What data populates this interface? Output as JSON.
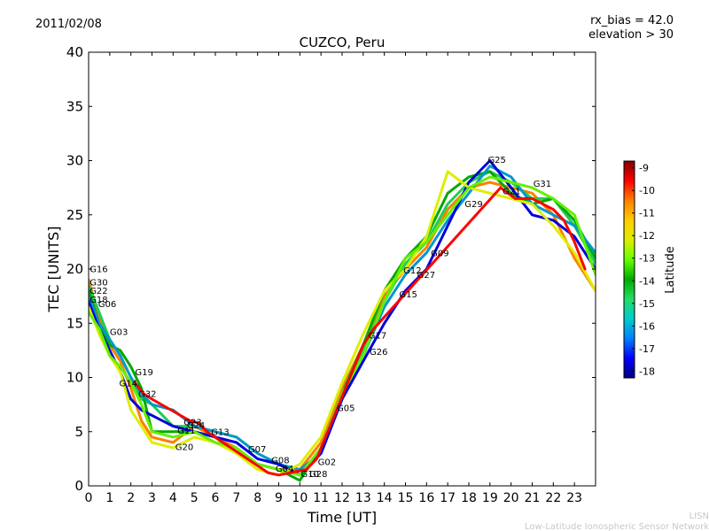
{
  "header": {
    "date": "2011/02/08",
    "rx_bias": "rx_bias = 42.0",
    "elevation": "elevation > 30"
  },
  "footer": {
    "line1": "LISN",
    "line2": "Low-Latitude Ionospheric Sensor Network"
  },
  "colorbar": {
    "label": "Latitude",
    "range": [
      -18.3,
      -8.7
    ],
    "ticks": [
      "-9",
      "-10",
      "-11",
      "-12",
      "-13",
      "-14",
      "-15",
      "-16",
      "-17",
      "-18"
    ],
    "tick_values": [
      -9,
      -10,
      -11,
      -12,
      -13,
      -14,
      -15,
      -16,
      -17,
      -18
    ],
    "stops": [
      "#00007f",
      "#0000ff",
      "#007fff",
      "#00cccc",
      "#22dd66",
      "#00aa00",
      "#66ff00",
      "#ddee00",
      "#ffcc00",
      "#ff7f00",
      "#ff0000",
      "#7f0000"
    ]
  },
  "chart_data": {
    "type": "scatter",
    "title": "CUZCO, Peru",
    "xlabel": "Time [UT]",
    "ylabel": "TEC [UNITS]",
    "xlim": [
      0,
      24
    ],
    "ylim": [
      0,
      40
    ],
    "xticks": [
      "0",
      "1",
      "2",
      "3",
      "4",
      "5",
      "6",
      "7",
      "8",
      "9",
      "10",
      "11",
      "12",
      "13",
      "14",
      "15",
      "16",
      "17",
      "18",
      "19",
      "20",
      "21",
      "22",
      "23"
    ],
    "yticks": [
      "0",
      "5",
      "10",
      "15",
      "20",
      "25",
      "30",
      "35",
      "40"
    ],
    "series": [
      {
        "color": "#ff7f00",
        "points": [
          [
            0,
            19
          ],
          [
            0.5,
            15.5
          ],
          [
            1,
            13
          ],
          [
            1.5,
            11.5
          ],
          [
            2,
            9
          ],
          [
            2.5,
            6
          ],
          [
            3,
            4.5
          ],
          [
            4,
            4
          ],
          [
            5,
            5.5
          ],
          [
            6,
            4.5
          ],
          [
            7,
            3.5
          ],
          [
            8,
            2
          ],
          [
            9,
            1.5
          ],
          [
            10,
            1.5
          ],
          [
            11,
            4
          ],
          [
            12,
            9
          ],
          [
            13,
            13
          ],
          [
            14,
            17.5
          ],
          [
            15,
            20
          ],
          [
            16,
            22
          ],
          [
            17,
            25.5
          ],
          [
            18,
            27.5
          ],
          [
            19,
            28
          ],
          [
            20,
            27.5
          ],
          [
            21,
            27
          ],
          [
            22,
            25
          ],
          [
            23,
            21
          ],
          [
            24,
            18
          ]
        ]
      },
      {
        "color": "#22cc55",
        "points": [
          [
            0,
            18.5
          ],
          [
            0.5,
            16
          ],
          [
            1,
            13.5
          ],
          [
            1.5,
            12
          ],
          [
            2,
            10
          ],
          [
            2.5,
            8
          ],
          [
            3,
            7.5
          ],
          [
            4,
            5.5
          ],
          [
            5,
            5.5
          ],
          [
            6,
            5
          ],
          [
            7,
            4.5
          ],
          [
            8,
            3
          ],
          [
            9,
            2
          ],
          [
            10,
            1
          ],
          [
            11,
            3
          ],
          [
            12,
            8
          ],
          [
            13,
            12.5
          ],
          [
            14,
            17
          ],
          [
            15,
            20.5
          ],
          [
            16,
            22.5
          ],
          [
            17,
            26
          ],
          [
            18,
            28
          ],
          [
            19,
            29
          ],
          [
            20,
            28
          ],
          [
            21,
            26.5
          ],
          [
            22,
            26.5
          ],
          [
            23,
            24
          ],
          [
            24,
            20.5
          ]
        ]
      },
      {
        "color": "#00aa00",
        "points": [
          [
            0,
            18
          ],
          [
            0.5,
            15
          ],
          [
            1,
            13
          ],
          [
            1.5,
            12.5
          ],
          [
            2,
            11
          ],
          [
            2.5,
            9
          ],
          [
            3,
            5
          ],
          [
            4,
            5
          ],
          [
            5,
            5
          ],
          [
            6,
            4.5
          ],
          [
            7,
            3
          ],
          [
            8,
            2
          ],
          [
            9,
            1.5
          ],
          [
            10,
            0.5
          ],
          [
            11,
            3.5
          ],
          [
            12,
            8.5
          ],
          [
            13,
            13
          ],
          [
            14,
            18
          ],
          [
            15,
            21
          ],
          [
            16,
            23
          ],
          [
            17,
            27
          ],
          [
            18,
            28.5
          ],
          [
            19,
            29
          ],
          [
            20,
            27
          ],
          [
            21,
            26
          ],
          [
            22,
            26.5
          ],
          [
            23,
            24.5
          ],
          [
            24,
            21
          ]
        ]
      },
      {
        "color": "#0099cc",
        "points": [
          [
            0,
            17.5
          ],
          [
            0.5,
            15
          ],
          [
            1,
            13.5
          ],
          [
            1.5,
            12
          ],
          [
            2,
            10
          ],
          [
            2.5,
            8.5
          ],
          [
            3,
            7.5
          ],
          [
            4,
            7
          ],
          [
            5,
            5.5
          ],
          [
            6,
            5
          ],
          [
            7,
            4.5
          ],
          [
            8,
            3
          ],
          [
            9,
            2
          ],
          [
            10,
            1.5
          ],
          [
            11,
            3
          ],
          [
            12,
            8
          ],
          [
            13,
            12
          ],
          [
            14,
            16.5
          ],
          [
            15,
            19.5
          ],
          [
            16,
            21.5
          ],
          [
            17,
            24.5
          ],
          [
            18,
            27
          ],
          [
            19,
            29.5
          ],
          [
            20,
            28.5
          ],
          [
            21,
            26
          ],
          [
            22,
            25
          ],
          [
            23,
            24
          ],
          [
            24,
            21.5
          ]
        ]
      },
      {
        "color": "#0000dd",
        "points": [
          [
            0,
            17
          ],
          [
            0.5,
            14.5
          ],
          [
            1,
            12.5
          ],
          [
            1.5,
            10.5
          ],
          [
            2,
            8
          ],
          [
            2.5,
            7
          ],
          [
            3,
            6.5
          ],
          [
            4,
            5.5
          ],
          [
            5,
            5
          ],
          [
            6,
            4.5
          ],
          [
            7,
            4
          ],
          [
            8,
            2.5
          ],
          [
            9,
            2
          ],
          [
            10,
            1
          ],
          [
            11,
            3
          ],
          [
            12,
            8
          ],
          [
            13,
            11.5
          ],
          [
            14,
            15
          ],
          [
            15,
            18
          ],
          [
            16,
            20
          ],
          [
            17,
            24
          ],
          [
            18,
            28
          ],
          [
            19,
            30
          ],
          [
            20,
            27.5
          ],
          [
            21,
            25
          ],
          [
            22,
            24.5
          ],
          [
            23,
            23
          ],
          [
            24,
            20
          ]
        ]
      },
      {
        "color": "#ddee00",
        "points": [
          [
            0,
            16.5
          ],
          [
            0.5,
            14
          ],
          [
            1,
            12
          ],
          [
            1.5,
            10.5
          ],
          [
            2,
            7
          ],
          [
            2.5,
            5.5
          ],
          [
            3,
            4
          ],
          [
            4,
            3.5
          ],
          [
            5,
            4.5
          ],
          [
            6,
            4
          ],
          [
            7,
            3
          ],
          [
            8,
            1.5
          ],
          [
            9,
            1
          ],
          [
            10,
            2
          ],
          [
            11,
            4.5
          ],
          [
            12,
            9.5
          ],
          [
            13,
            14
          ],
          [
            14,
            18
          ],
          [
            15,
            20
          ],
          [
            16,
            23
          ],
          [
            17,
            29
          ],
          [
            18,
            27.5
          ],
          [
            19,
            27
          ],
          [
            20,
            26.5
          ],
          [
            21,
            26
          ],
          [
            22,
            24
          ],
          [
            23,
            21.5
          ],
          [
            24,
            18
          ]
        ]
      },
      {
        "color": "#66ee00",
        "points": [
          [
            0,
            16
          ],
          [
            0.5,
            14.5
          ],
          [
            1,
            12
          ],
          [
            1.5,
            11
          ],
          [
            2,
            9.5
          ],
          [
            2.5,
            7.5
          ],
          [
            3,
            5
          ],
          [
            4,
            4.5
          ],
          [
            5,
            5
          ],
          [
            6,
            4
          ],
          [
            7,
            3.5
          ],
          [
            8,
            2
          ],
          [
            9,
            1.5
          ],
          [
            10,
            1
          ],
          [
            11,
            3.5
          ],
          [
            12,
            8.5
          ],
          [
            13,
            12
          ],
          [
            14,
            17
          ],
          [
            15,
            21
          ],
          [
            16,
            22.5
          ],
          [
            17,
            25
          ],
          [
            18,
            27.5
          ],
          [
            19,
            28.5
          ],
          [
            20,
            28
          ],
          [
            21,
            27.5
          ],
          [
            22,
            26.5
          ],
          [
            23,
            25
          ],
          [
            24,
            19.5
          ]
        ]
      },
      {
        "color": "#ff0000",
        "points": [
          [
            2.2,
            9.5
          ],
          [
            2.6,
            8.5
          ],
          [
            3,
            8
          ],
          [
            4.8,
            6
          ],
          [
            5.2,
            5.8
          ],
          [
            5.6,
            5
          ],
          [
            8.5,
            1.2
          ],
          [
            9,
            1
          ],
          [
            10.3,
            1.5
          ],
          [
            10.8,
            2.5
          ],
          [
            13,
            13
          ],
          [
            13.5,
            14.5
          ],
          [
            19.5,
            27.5
          ],
          [
            20.2,
            26.5
          ],
          [
            21,
            26.5
          ],
          [
            22,
            25.5
          ],
          [
            22.5,
            24.5
          ],
          [
            23,
            22.5
          ],
          [
            23.5,
            20
          ]
        ]
      }
    ],
    "annotations": [
      {
        "text": "G16",
        "x": 0.05,
        "y": 19.7
      },
      {
        "text": "G30",
        "x": 0.05,
        "y": 18.5
      },
      {
        "text": "G22",
        "x": 0.05,
        "y": 17.7
      },
      {
        "text": "G18",
        "x": 0.05,
        "y": 16.9
      },
      {
        "text": "G06",
        "x": 0.45,
        "y": 16.5
      },
      {
        "text": "G03",
        "x": 1.0,
        "y": 13.9
      },
      {
        "text": "G19",
        "x": 2.2,
        "y": 10.2
      },
      {
        "text": "G14",
        "x": 1.45,
        "y": 9.2
      },
      {
        "text": "G32",
        "x": 2.35,
        "y": 8.2
      },
      {
        "text": "G23",
        "x": 4.5,
        "y": 5.6
      },
      {
        "text": "G24",
        "x": 4.65,
        "y": 5.3
      },
      {
        "text": "G11",
        "x": 4.2,
        "y": 4.8
      },
      {
        "text": "G13",
        "x": 5.8,
        "y": 4.7
      },
      {
        "text": "G20",
        "x": 4.1,
        "y": 3.3
      },
      {
        "text": "G07",
        "x": 7.55,
        "y": 3.1
      },
      {
        "text": "G08",
        "x": 8.65,
        "y": 2.1
      },
      {
        "text": "G04",
        "x": 8.85,
        "y": 1.3
      },
      {
        "text": "G10",
        "x": 10.05,
        "y": 0.8
      },
      {
        "text": "G28",
        "x": 10.45,
        "y": 0.8
      },
      {
        "text": "G02",
        "x": 10.85,
        "y": 1.9
      },
      {
        "text": "G05",
        "x": 11.75,
        "y": 6.9
      },
      {
        "text": "G17",
        "x": 13.25,
        "y": 13.6
      },
      {
        "text": "G26",
        "x": 13.3,
        "y": 12.1
      },
      {
        "text": "G15",
        "x": 14.7,
        "y": 17.4
      },
      {
        "text": "G12",
        "x": 14.9,
        "y": 19.6
      },
      {
        "text": "G27",
        "x": 15.55,
        "y": 19.2
      },
      {
        "text": "G09",
        "x": 16.2,
        "y": 21.2
      },
      {
        "text": "G29",
        "x": 17.8,
        "y": 25.7
      },
      {
        "text": "G25",
        "x": 18.9,
        "y": 29.8
      },
      {
        "text": "G21",
        "x": 19.6,
        "y": 26.9
      },
      {
        "text": "G31",
        "x": 21.05,
        "y": 27.6
      }
    ]
  }
}
